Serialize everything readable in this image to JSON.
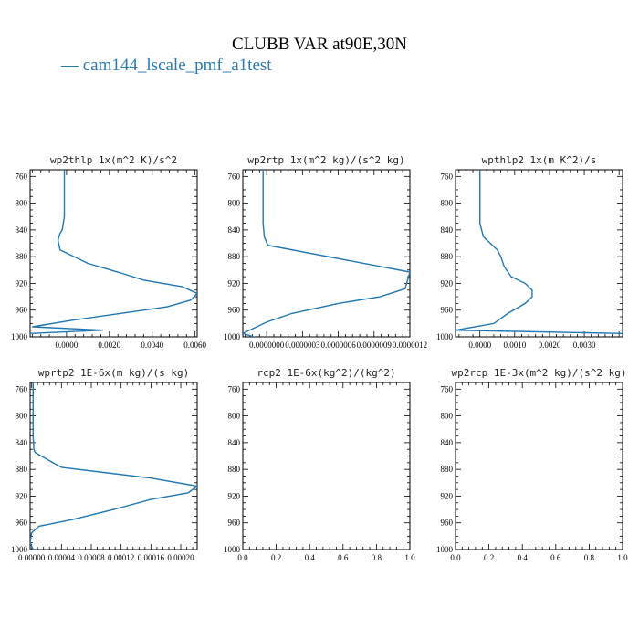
{
  "title": "CLUBB VAR at90E,30N",
  "legend": [
    {
      "label": "— cam144_lscale_pmf_a1test",
      "color": "#1f77b4"
    }
  ],
  "chart_data": [
    {
      "type": "line",
      "title": "wp2thlp  1x(m^2 K)/s^2",
      "xlim": [
        -0.0017,
        0.0061
      ],
      "ylim": [
        1000,
        750
      ],
      "xticks": [
        0.0,
        0.002,
        0.004,
        0.006
      ],
      "xtick_labels": [
        "0.0000",
        "0.0020",
        "0.0040",
        "0.0060"
      ],
      "yticks": [
        760,
        800,
        840,
        880,
        920,
        960,
        1000
      ],
      "series": [
        {
          "x": [
            -0.0001,
            -0.0001,
            -0.0001,
            -0.0001,
            -0.0002,
            -0.0003,
            -0.0004,
            -0.0003,
            0.001,
            0.0026,
            0.0036,
            0.0054,
            0.0061,
            0.0058,
            0.0047,
            0.0025,
            0.0003,
            -0.0016,
            0.0017,
            -0.0017
          ],
          "y": [
            750,
            780,
            800,
            820,
            840,
            845,
            855,
            870,
            890,
            905,
            915,
            925,
            935,
            945,
            955,
            965,
            975,
            985,
            990,
            995
          ]
        }
      ]
    },
    {
      "type": "line",
      "title": "wp2rtp  1x(m^2 kg)/(s^2 kg)",
      "xlim": [
        -2e-07,
        1.2e-06
      ],
      "ylim": [
        1000,
        750
      ],
      "xticks": [
        0.0,
        3e-07,
        6e-07,
        9e-07,
        1.2e-06
      ],
      "xtick_labels": [
        "0.0000000",
        "0.0000003",
        "0.0000006",
        "0.0000009",
        "0.0000012"
      ],
      "yticks": [
        760,
        800,
        840,
        880,
        920,
        960,
        1000
      ],
      "series": [
        {
          "x": [
            -3e-08,
            -3e-08,
            -3e-08,
            -2e-08,
            1e-08,
            1.2e-06,
            1.16e-06,
            9.5e-07,
            6e-07,
            2.1e-07,
            0.0,
            -2e-07,
            -1.1e-07
          ],
          "y": [
            750,
            800,
            830,
            850,
            863,
            903,
            928,
            940,
            950,
            965,
            978,
            995,
            1000
          ]
        }
      ]
    },
    {
      "type": "line",
      "title": "wpthlp2  1x(m K^2)/s",
      "xlim": [
        -0.0007,
        0.0041
      ],
      "ylim": [
        1000,
        750
      ],
      "xticks": [
        0.0,
        0.001,
        0.002,
        0.003
      ],
      "xtick_labels": [
        "0.0000",
        "0.0010",
        "0.0020",
        "0.0030"
      ],
      "yticks": [
        760,
        800,
        840,
        880,
        920,
        960,
        1000
      ],
      "series": [
        {
          "x": [
            0.0,
            0.0,
            0.0,
            0.0001,
            0.0005,
            0.0006,
            0.0007,
            0.0009,
            0.0013,
            0.0015,
            0.0015,
            0.0013,
            0.0008,
            0.0004,
            -0.0007,
            0.0041
          ],
          "y": [
            750,
            800,
            830,
            850,
            870,
            880,
            895,
            910,
            920,
            930,
            940,
            950,
            965,
            980,
            990,
            995
          ]
        }
      ]
    },
    {
      "type": "line",
      "title": "wprtp2  1E-6x(m kg)/(s kg)",
      "xlim": [
        -2e-06,
        0.000222
      ],
      "ylim": [
        1000,
        750
      ],
      "xticks": [
        0.0,
        4e-05,
        8e-05,
        0.00012,
        0.00016,
        0.0002
      ],
      "xtick_labels": [
        "0.00000",
        "0.00004",
        "0.00008",
        "0.00012",
        "0.00016",
        "0.00020"
      ],
      "yticks": [
        760,
        800,
        840,
        880,
        920,
        960,
        1000
      ],
      "series": [
        {
          "x": [
            2e-06,
            2e-06,
            2e-06,
            3e-06,
            5e-06,
            4e-05,
            0.00016,
            0.000222,
            0.00021,
            0.00016,
            0.00011,
            5.5e-05,
            1e-05,
            0.0,
            -2e-06,
            2e-06
          ],
          "y": [
            750,
            800,
            830,
            850,
            855,
            877,
            893,
            905,
            915,
            925,
            940,
            955,
            965,
            975,
            990,
            1000
          ]
        }
      ]
    },
    {
      "type": "line",
      "title": "rcp2  1E-6x(kg^2)/(kg^2)",
      "xlim": [
        0,
        1
      ],
      "ylim": [
        1000,
        750
      ],
      "xticks": [
        0.0,
        0.2,
        0.4,
        0.6,
        0.8,
        1.0
      ],
      "xtick_labels": [
        "0.0",
        "0.2",
        "0.4",
        "0.6",
        "0.8",
        "1.0"
      ],
      "yticks": [
        760,
        800,
        840,
        880,
        920,
        960,
        1000
      ],
      "series": []
    },
    {
      "type": "line",
      "title": "wp2rcp  1E-3x(m^2 kg)/(s^2 kg)",
      "xlim": [
        0,
        1
      ],
      "ylim": [
        1000,
        750
      ],
      "xticks": [
        0.0,
        0.2,
        0.4,
        0.6,
        0.8,
        1.0
      ],
      "xtick_labels": [
        "0.0",
        "0.2",
        "0.4",
        "0.6",
        "0.8",
        "1.0"
      ],
      "yticks": [
        760,
        800,
        840,
        880,
        920,
        960,
        1000
      ],
      "series": []
    }
  ]
}
